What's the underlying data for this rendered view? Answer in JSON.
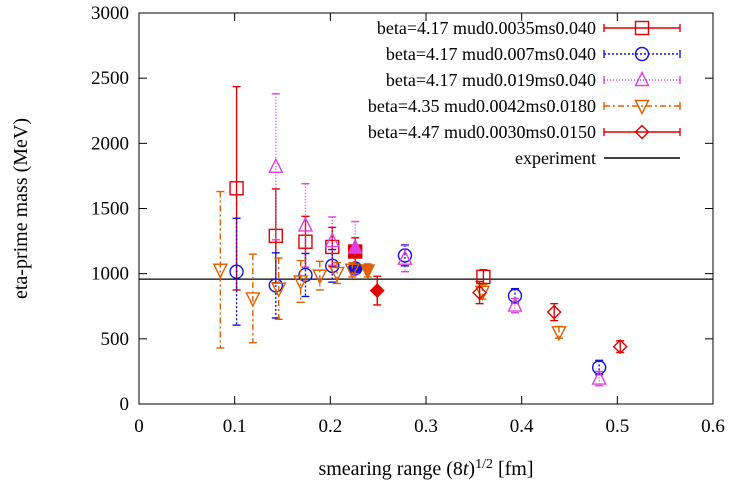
{
  "chart_data": {
    "type": "scatter",
    "xlabel_main": "smearing range (8",
    "xlabel_var": "t",
    "xlabel_paren": ")",
    "xlabel_sup": "1/2",
    "xlabel_unit": " [fm]",
    "ylabel": "eta-prime mass (MeV)",
    "xlim": [
      0,
      0.6
    ],
    "ylim": [
      0,
      3000
    ],
    "xticks": [
      "0",
      "0.1",
      "0.2",
      "0.3",
      "0.4",
      "0.5",
      "0.6"
    ],
    "yticks": [
      "0",
      "500",
      "1000",
      "1500",
      "2000",
      "2500",
      "3000"
    ],
    "grid": false,
    "legend_position": "top-right",
    "experiment": {
      "name": "experiment",
      "value": 958,
      "color": "#000000"
    },
    "series": [
      {
        "name": "beta=4.17 mud0.0035ms0.040",
        "color": "#e00000",
        "marker": "square",
        "dash": "",
        "points": [
          {
            "x": 0.102,
            "y": 1655,
            "err": 780
          },
          {
            "x": 0.143,
            "y": 1290,
            "err": 360
          },
          {
            "x": 0.174,
            "y": 1245,
            "err": 195
          },
          {
            "x": 0.202,
            "y": 1205,
            "err": 150
          },
          {
            "x": 0.226,
            "y": 1170,
            "err": 105,
            "filled": true
          },
          {
            "x": 0.36,
            "y": 975,
            "err": 55
          }
        ]
      },
      {
        "name": "beta=4.17 mud0.007ms0.040",
        "color": "#1010e0",
        "marker": "circle",
        "dash": "2,2",
        "points": [
          {
            "x": 0.102,
            "y": 1015,
            "err": 410
          },
          {
            "x": 0.143,
            "y": 910,
            "err": 250
          },
          {
            "x": 0.174,
            "y": 990,
            "err": 165
          },
          {
            "x": 0.202,
            "y": 1060,
            "err": 125
          },
          {
            "x": 0.226,
            "y": 1040,
            "err": 40,
            "filled": true
          },
          {
            "x": 0.278,
            "y": 1140,
            "err": 80
          },
          {
            "x": 0.393,
            "y": 830,
            "err": 55
          },
          {
            "x": 0.481,
            "y": 280,
            "err": 55
          }
        ]
      },
      {
        "name": "beta=4.17 mud0.019ms0.040",
        "color": "#e040e0",
        "marker": "triangle-up",
        "dash": "1,2",
        "points": [
          {
            "x": 0.143,
            "y": 1820,
            "err": 560
          },
          {
            "x": 0.174,
            "y": 1370,
            "err": 320
          },
          {
            "x": 0.202,
            "y": 1250,
            "err": 185
          },
          {
            "x": 0.226,
            "y": 1200,
            "err": 200,
            "filled": true
          },
          {
            "x": 0.278,
            "y": 1115,
            "err": 100
          },
          {
            "x": 0.393,
            "y": 755,
            "err": 55
          },
          {
            "x": 0.481,
            "y": 195,
            "err": 55
          }
        ]
      },
      {
        "name": "beta=4.35 mud0.0042ms0.0180",
        "color": "#e06000",
        "marker": "triangle-down",
        "dash": "6,3,2,3",
        "points": [
          {
            "x": 0.085,
            "y": 1030,
            "err": 600
          },
          {
            "x": 0.119,
            "y": 810,
            "err": 340
          },
          {
            "x": 0.146,
            "y": 885,
            "err": 235
          },
          {
            "x": 0.169,
            "y": 940,
            "err": 160
          },
          {
            "x": 0.189,
            "y": 985,
            "err": 110
          },
          {
            "x": 0.207,
            "y": 1005,
            "err": 80
          },
          {
            "x": 0.223,
            "y": 1030,
            "err": 55
          },
          {
            "x": 0.239,
            "y": 1025,
            "err": 50,
            "filled": true
          },
          {
            "x": 0.359,
            "y": 860,
            "err": 55
          },
          {
            "x": 0.439,
            "y": 550,
            "err": 45
          }
        ]
      },
      {
        "name": "beta=4.47 mud0.0030ms0.0150",
        "color": "#e00000",
        "marker": "diamond",
        "dash": "",
        "points": [
          {
            "x": 0.249,
            "y": 870,
            "err": 110,
            "filled": true
          },
          {
            "x": 0.356,
            "y": 855,
            "err": 85
          },
          {
            "x": 0.434,
            "y": 705,
            "err": 65
          },
          {
            "x": 0.503,
            "y": 440,
            "err": 45
          }
        ]
      }
    ]
  }
}
